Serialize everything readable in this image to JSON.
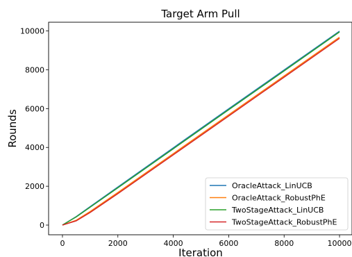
{
  "chart_data": {
    "type": "line",
    "title": "Target Arm Pull",
    "xlabel": "Iteration",
    "ylabel": "Rounds",
    "xlim": [
      -500,
      10450
    ],
    "ylim": [
      -500,
      10450
    ],
    "xticks": [
      0,
      2000,
      4000,
      6000,
      8000,
      10000
    ],
    "yticks": [
      0,
      2000,
      4000,
      6000,
      8000,
      10000
    ],
    "xtick_labels": [
      "0",
      "2000",
      "4000",
      "6000",
      "8000",
      "10000"
    ],
    "ytick_labels": [
      "0",
      "2000",
      "4000",
      "6000",
      "8000",
      "10000"
    ],
    "grid": false,
    "legend_position": "lower-right",
    "series": [
      {
        "name": "OracleAttack_LinUCB",
        "color": "#1f77b4",
        "x": [
          0,
          500,
          1000,
          2000,
          4000,
          6000,
          8000,
          10000
        ],
        "y": [
          0,
          440,
          950,
          1960,
          3980,
          5990,
          7990,
          9990
        ]
      },
      {
        "name": "OracleAttack_RobustPhE",
        "color": "#ff7f0e",
        "x": [
          0,
          500,
          1000,
          2000,
          4000,
          6000,
          8000,
          10000
        ],
        "y": [
          0,
          250,
          700,
          1680,
          3680,
          5680,
          7680,
          9680
        ]
      },
      {
        "name": "TwoStageAttack_LinUCB",
        "color": "#2ca02c",
        "x": [
          0,
          500,
          1000,
          2000,
          4000,
          6000,
          8000,
          10000
        ],
        "y": [
          0,
          420,
          920,
          1920,
          3930,
          5940,
          7940,
          9950
        ]
      },
      {
        "name": "TwoStageAttack_RobustPhE",
        "color": "#d62728",
        "x": [
          0,
          500,
          1000,
          2000,
          4000,
          6000,
          8000,
          10000
        ],
        "y": [
          0,
          220,
          650,
          1620,
          3620,
          5620,
          7620,
          9620
        ]
      }
    ]
  }
}
